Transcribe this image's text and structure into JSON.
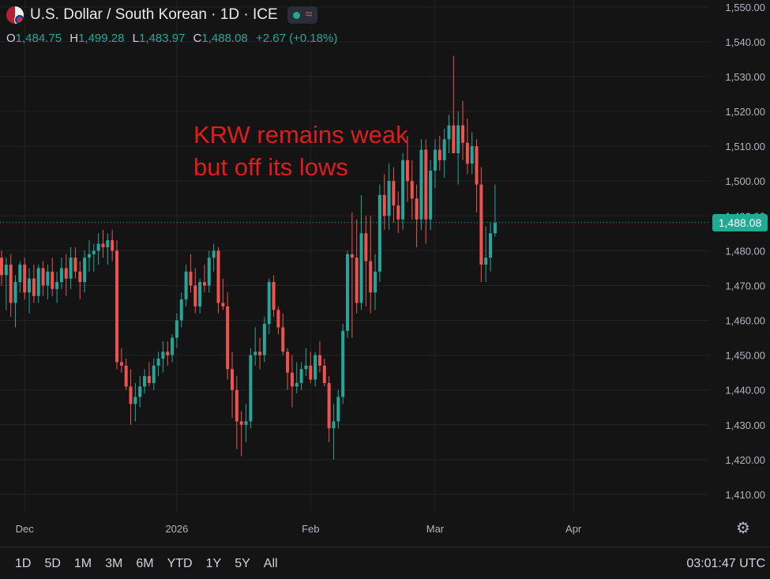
{
  "header": {
    "title": "U.S. Dollar / South Korean · 1D · ICE",
    "flag_icon": "us-kr-flag-icon",
    "status_icons": [
      "market-open-dot-icon",
      "wave-icon"
    ]
  },
  "ohlc": {
    "o_key": "O",
    "o_val": "1,484.75",
    "h_key": "H",
    "h_val": "1,499.28",
    "l_key": "L",
    "l_val": "1,483.97",
    "c_key": "C",
    "c_val": "1,488.08",
    "change": "+2.67 (+0.18%)"
  },
  "annotation": "KRW remains weak\nbut off its lows",
  "current_price_label": "1,488.08",
  "footer": {
    "ranges": [
      "1D",
      "5D",
      "1M",
      "3M",
      "6M",
      "YTD",
      "1Y",
      "5Y",
      "All"
    ],
    "time": "03:01:47 UTC"
  },
  "colors": {
    "background": "#141414",
    "up": "#26a69a",
    "down": "#ef5350",
    "annotation": "#e21c1c",
    "grid": "#232323"
  },
  "chart_data": {
    "type": "candlestick",
    "ylim": [
      1405,
      1552
    ],
    "y_ticks": [
      {
        "v": 1550,
        "label": "1,550.00"
      },
      {
        "v": 1540,
        "label": "1,540.00"
      },
      {
        "v": 1530,
        "label": "1,530.00"
      },
      {
        "v": 1520,
        "label": "1,520.00"
      },
      {
        "v": 1510,
        "label": "1,510.00"
      },
      {
        "v": 1500,
        "label": "1,500.00"
      },
      {
        "v": 1490,
        "label": "1,490.00"
      },
      {
        "v": 1480,
        "label": "1,480.00"
      },
      {
        "v": 1470,
        "label": "1,470.00"
      },
      {
        "v": 1460,
        "label": "1,460.00"
      },
      {
        "v": 1450,
        "label": "1,450.00"
      },
      {
        "v": 1440,
        "label": "1,440.00"
      },
      {
        "v": 1430,
        "label": "1,430.00"
      },
      {
        "v": 1420,
        "label": "1,420.00"
      },
      {
        "v": 1410,
        "label": "1,410.00"
      }
    ],
    "x_ticks": [
      {
        "i": 5,
        "label": "Dec"
      },
      {
        "i": 38,
        "label": "2026"
      },
      {
        "i": 67,
        "label": "Feb"
      },
      {
        "i": 94,
        "label": "Mar"
      },
      {
        "i": 124,
        "label": "Apr"
      }
    ],
    "current_price": 1488.08,
    "candles": [
      [
        1478,
        1480,
        1470,
        1473
      ],
      [
        1473,
        1478,
        1463,
        1476
      ],
      [
        1476,
        1479,
        1461,
        1465
      ],
      [
        1465,
        1473,
        1458,
        1471
      ],
      [
        1471,
        1477,
        1468,
        1476
      ],
      [
        1476,
        1478,
        1466,
        1468
      ],
      [
        1468,
        1475,
        1462,
        1472
      ],
      [
        1472,
        1476,
        1465,
        1467
      ],
      [
        1467,
        1476,
        1465,
        1475
      ],
      [
        1475,
        1477,
        1467,
        1470
      ],
      [
        1470,
        1476,
        1466,
        1474
      ],
      [
        1474,
        1478,
        1467,
        1469
      ],
      [
        1469,
        1474,
        1465,
        1471
      ],
      [
        1471,
        1478,
        1469,
        1475
      ],
      [
        1475,
        1479,
        1467,
        1472
      ],
      [
        1472,
        1481,
        1469,
        1478
      ],
      [
        1478,
        1481,
        1472,
        1474
      ],
      [
        1474,
        1477,
        1466,
        1471
      ],
      [
        1471,
        1480,
        1468,
        1478
      ],
      [
        1478,
        1483,
        1474,
        1479
      ],
      [
        1479,
        1482,
        1474,
        1480
      ],
      [
        1480,
        1485,
        1476,
        1482
      ],
      [
        1482,
        1486,
        1478,
        1481
      ],
      [
        1481,
        1485,
        1476,
        1483
      ],
      [
        1483,
        1486,
        1477,
        1480
      ],
      [
        1480,
        1483,
        1446,
        1448
      ],
      [
        1448,
        1452,
        1445,
        1447
      ],
      [
        1447,
        1449,
        1440,
        1441
      ],
      [
        1441,
        1446,
        1430,
        1436
      ],
      [
        1436,
        1442,
        1431,
        1438
      ],
      [
        1438,
        1444,
        1435,
        1441
      ],
      [
        1441,
        1446,
        1439,
        1444
      ],
      [
        1444,
        1448,
        1441,
        1442
      ],
      [
        1442,
        1449,
        1440,
        1447
      ],
      [
        1447,
        1451,
        1444,
        1449
      ],
      [
        1449,
        1454,
        1445,
        1451
      ],
      [
        1451,
        1454,
        1447,
        1450
      ],
      [
        1450,
        1456,
        1448,
        1455
      ],
      [
        1455,
        1462,
        1452,
        1460
      ],
      [
        1460,
        1468,
        1458,
        1466
      ],
      [
        1466,
        1476,
        1464,
        1474
      ],
      [
        1474,
        1479,
        1468,
        1470
      ],
      [
        1470,
        1475,
        1462,
        1464
      ],
      [
        1464,
        1472,
        1462,
        1471
      ],
      [
        1471,
        1476,
        1468,
        1470
      ],
      [
        1470,
        1480,
        1468,
        1478
      ],
      [
        1478,
        1482,
        1474,
        1480
      ],
      [
        1480,
        1481,
        1462,
        1465
      ],
      [
        1465,
        1472,
        1463,
        1464
      ],
      [
        1464,
        1468,
        1443,
        1446
      ],
      [
        1446,
        1451,
        1432,
        1440
      ],
      [
        1440,
        1444,
        1423,
        1431
      ],
      [
        1431,
        1434,
        1421,
        1430
      ],
      [
        1430,
        1436,
        1425,
        1431
      ],
      [
        1431,
        1452,
        1429,
        1450
      ],
      [
        1450,
        1458,
        1447,
        1451
      ],
      [
        1451,
        1455,
        1446,
        1450
      ],
      [
        1450,
        1461,
        1448,
        1459
      ],
      [
        1459,
        1472,
        1456,
        1471
      ],
      [
        1471,
        1473,
        1461,
        1463
      ],
      [
        1463,
        1464,
        1456,
        1458
      ],
      [
        1458,
        1462,
        1450,
        1451
      ],
      [
        1451,
        1452,
        1440,
        1445
      ],
      [
        1445,
        1450,
        1435,
        1441
      ],
      [
        1441,
        1448,
        1439,
        1442
      ],
      [
        1442,
        1448,
        1440,
        1446
      ],
      [
        1446,
        1452,
        1444,
        1447
      ],
      [
        1447,
        1451,
        1442,
        1443
      ],
      [
        1443,
        1451,
        1441,
        1450
      ],
      [
        1450,
        1454,
        1445,
        1447
      ],
      [
        1447,
        1449,
        1441,
        1442
      ],
      [
        1442,
        1444,
        1425,
        1429
      ],
      [
        1429,
        1436,
        1420,
        1431
      ],
      [
        1431,
        1440,
        1429,
        1438
      ],
      [
        1438,
        1459,
        1436,
        1457
      ],
      [
        1457,
        1480,
        1455,
        1479
      ],
      [
        1479,
        1491,
        1455,
        1478
      ],
      [
        1478,
        1489,
        1462,
        1465
      ],
      [
        1465,
        1496,
        1463,
        1485
      ],
      [
        1485,
        1490,
        1464,
        1477
      ],
      [
        1477,
        1490,
        1462,
        1468
      ],
      [
        1468,
        1479,
        1463,
        1474
      ],
      [
        1474,
        1499,
        1471,
        1496
      ],
      [
        1496,
        1502,
        1486,
        1490
      ],
      [
        1490,
        1505,
        1486,
        1500
      ],
      [
        1500,
        1504,
        1488,
        1493
      ],
      [
        1493,
        1497,
        1485,
        1489
      ],
      [
        1489,
        1508,
        1486,
        1506
      ],
      [
        1506,
        1513,
        1494,
        1500
      ],
      [
        1500,
        1506,
        1489,
        1495
      ],
      [
        1495,
        1499,
        1481,
        1489
      ],
      [
        1489,
        1512,
        1486,
        1509
      ],
      [
        1509,
        1512,
        1482,
        1489
      ],
      [
        1489,
        1506,
        1486,
        1503
      ],
      [
        1503,
        1512,
        1498,
        1509
      ],
      [
        1509,
        1513,
        1503,
        1506
      ],
      [
        1506,
        1515,
        1501,
        1512
      ],
      [
        1512,
        1519,
        1508,
        1516
      ],
      [
        1516,
        1536,
        1509,
        1508
      ],
      [
        1508,
        1520,
        1499,
        1516
      ],
      [
        1516,
        1523,
        1506,
        1511
      ],
      [
        1511,
        1518,
        1502,
        1505
      ],
      [
        1505,
        1514,
        1502,
        1510
      ],
      [
        1510,
        1512,
        1491,
        1499
      ],
      [
        1499,
        1504,
        1471,
        1476
      ],
      [
        1476,
        1487,
        1471,
        1478
      ],
      [
        1478,
        1488,
        1474,
        1485
      ],
      [
        1485,
        1499,
        1484,
        1488
      ]
    ]
  }
}
